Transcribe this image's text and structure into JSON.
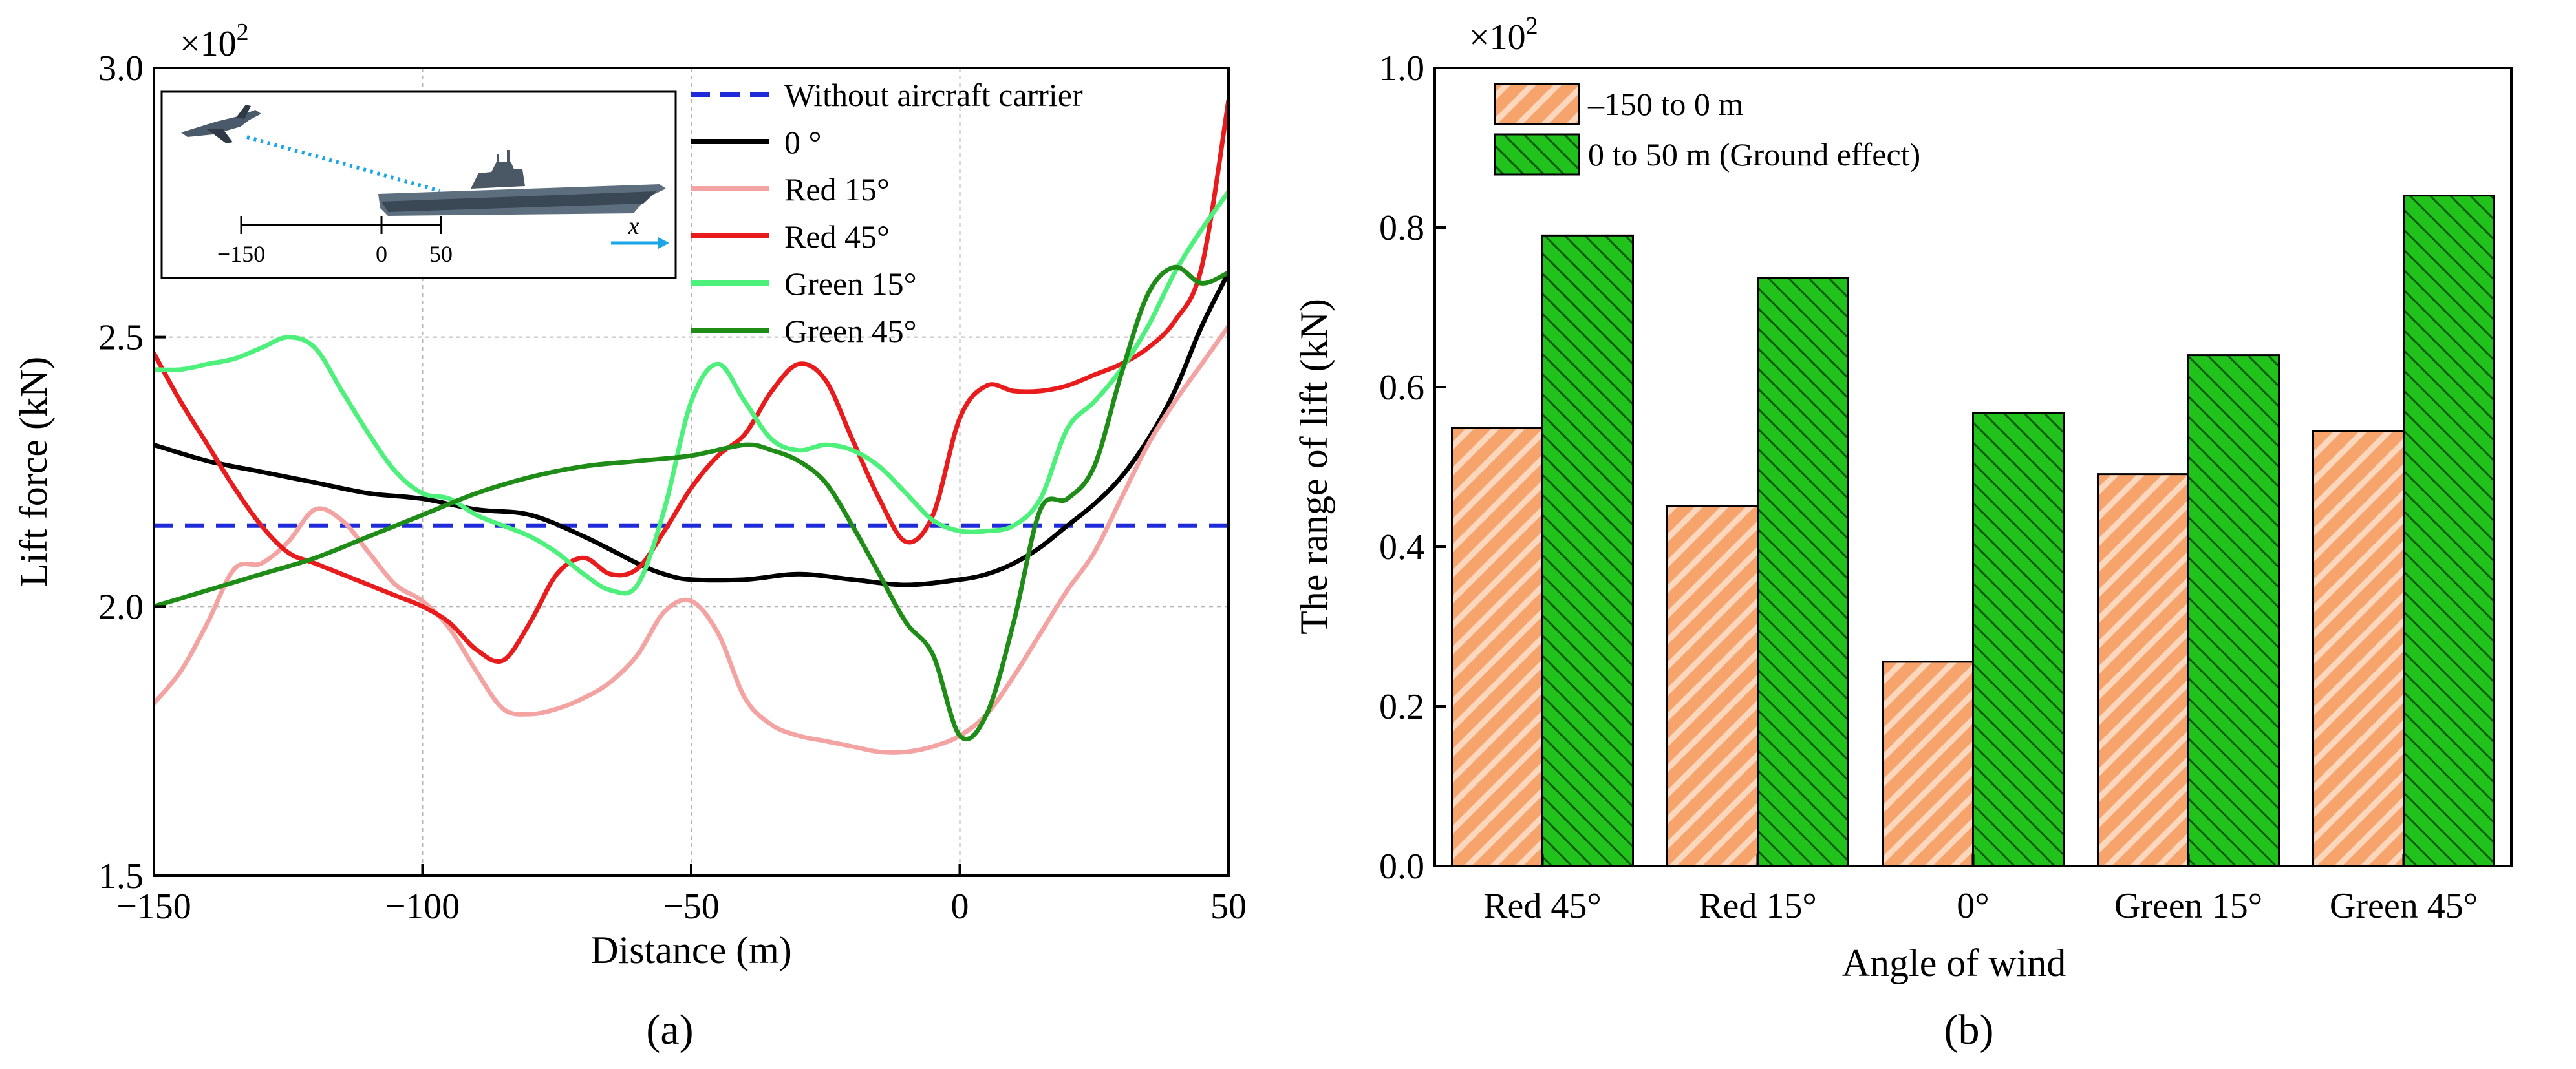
{
  "chart_data": [
    {
      "type": "line",
      "panel_label": "(a)",
      "xlabel": "Distance (m)",
      "ylabel": "Lift force (kN)",
      "xlim": [
        -150,
        50
      ],
      "ylim": [
        1.5,
        3.0
      ],
      "y_multiplier": "×10",
      "y_multiplier_exp": "2",
      "x_ticks": [
        -150,
        -100,
        -50,
        0,
        50
      ],
      "x_tick_labels": [
        "−150",
        "−100",
        "−50",
        "0",
        "50"
      ],
      "y_ticks": [
        1.5,
        2.0,
        2.5,
        3.0
      ],
      "y_tick_labels": [
        "1.5",
        "2.0",
        "2.5",
        "3.0"
      ],
      "grid": true,
      "inset": {
        "description": "aircraft approaching carrier deck",
        "tick_labels": [
          "−150",
          "0",
          "50"
        ],
        "axis_label": "x"
      },
      "series": [
        {
          "name": "Without aircraft carrier",
          "color": "#1f2bd8",
          "dash": true,
          "x": [
            -150,
            50
          ],
          "y": [
            2.15,
            2.15
          ]
        },
        {
          "name": "0 °",
          "color": "#000000",
          "x": [
            -150,
            -140,
            -130,
            -120,
            -110,
            -100,
            -90,
            -80,
            -70,
            -60,
            -55,
            -50,
            -40,
            -30,
            -20,
            -10,
            0,
            5,
            10,
            15,
            20,
            25,
            30,
            35,
            40,
            45,
            50
          ],
          "y": [
            2.3,
            2.27,
            2.25,
            2.23,
            2.21,
            2.2,
            2.18,
            2.17,
            2.13,
            2.08,
            2.06,
            2.05,
            2.05,
            2.06,
            2.05,
            2.04,
            2.05,
            2.06,
            2.08,
            2.11,
            2.15,
            2.19,
            2.24,
            2.31,
            2.4,
            2.52,
            2.62
          ]
        },
        {
          "name": "Red 15°",
          "color": "#f4a3a3",
          "x": [
            -150,
            -145,
            -140,
            -135,
            -130,
            -125,
            -120,
            -115,
            -110,
            -105,
            -100,
            -95,
            -90,
            -85,
            -80,
            -75,
            -70,
            -65,
            -60,
            -55,
            -50,
            -45,
            -40,
            -35,
            -30,
            -25,
            -20,
            -15,
            -10,
            -5,
            0,
            5,
            10,
            15,
            20,
            25,
            30,
            35,
            40,
            45,
            50
          ],
          "y": [
            1.82,
            1.88,
            1.97,
            2.07,
            2.08,
            2.12,
            2.18,
            2.16,
            2.1,
            2.04,
            2.01,
            1.96,
            1.88,
            1.81,
            1.8,
            1.81,
            1.83,
            1.86,
            1.91,
            1.99,
            2.01,
            1.95,
            1.83,
            1.78,
            1.76,
            1.75,
            1.74,
            1.73,
            1.73,
            1.74,
            1.76,
            1.8,
            1.87,
            1.95,
            2.03,
            2.1,
            2.2,
            2.3,
            2.38,
            2.45,
            2.52
          ]
        },
        {
          "name": "Red 45°",
          "color": "#e81c1c",
          "x": [
            -150,
            -145,
            -140,
            -135,
            -130,
            -125,
            -120,
            -115,
            -110,
            -105,
            -100,
            -95,
            -90,
            -85,
            -80,
            -75,
            -70,
            -65,
            -60,
            -55,
            -50,
            -45,
            -40,
            -35,
            -30,
            -25,
            -20,
            -15,
            -10,
            -5,
            0,
            5,
            10,
            15,
            20,
            25,
            30,
            35,
            40,
            45,
            50
          ],
          "y": [
            2.47,
            2.38,
            2.3,
            2.22,
            2.15,
            2.1,
            2.08,
            2.06,
            2.04,
            2.02,
            2.0,
            1.97,
            1.92,
            1.9,
            1.97,
            2.06,
            2.09,
            2.06,
            2.07,
            2.14,
            2.22,
            2.28,
            2.32,
            2.4,
            2.45,
            2.42,
            2.31,
            2.2,
            2.12,
            2.17,
            2.35,
            2.41,
            2.4,
            2.4,
            2.41,
            2.43,
            2.45,
            2.48,
            2.53,
            2.63,
            2.94
          ]
        },
        {
          "name": "Green 15°",
          "color": "#4cf07a",
          "x": [
            -150,
            -145,
            -140,
            -135,
            -130,
            -125,
            -120,
            -115,
            -110,
            -105,
            -100,
            -95,
            -90,
            -85,
            -80,
            -75,
            -70,
            -65,
            -60,
            -55,
            -50,
            -45,
            -40,
            -35,
            -30,
            -25,
            -20,
            -15,
            -10,
            -5,
            0,
            5,
            10,
            15,
            20,
            25,
            30,
            35,
            40,
            45,
            50
          ],
          "y": [
            2.44,
            2.44,
            2.45,
            2.46,
            2.48,
            2.5,
            2.48,
            2.4,
            2.32,
            2.25,
            2.21,
            2.2,
            2.17,
            2.15,
            2.13,
            2.1,
            2.06,
            2.03,
            2.04,
            2.18,
            2.38,
            2.45,
            2.38,
            2.31,
            2.29,
            2.3,
            2.29,
            2.26,
            2.21,
            2.16,
            2.14,
            2.14,
            2.15,
            2.2,
            2.33,
            2.38,
            2.44,
            2.52,
            2.62,
            2.7,
            2.77
          ]
        },
        {
          "name": "Green 45°",
          "color": "#1e8c16",
          "x": [
            -150,
            -140,
            -130,
            -120,
            -110,
            -100,
            -90,
            -80,
            -70,
            -60,
            -50,
            -40,
            -35,
            -30,
            -25,
            -20,
            -15,
            -10,
            -5,
            0,
            5,
            10,
            15,
            20,
            25,
            30,
            35,
            40,
            45,
            50
          ],
          "y": [
            2.0,
            2.03,
            2.06,
            2.09,
            2.13,
            2.17,
            2.21,
            2.24,
            2.26,
            2.27,
            2.28,
            2.3,
            2.29,
            2.27,
            2.23,
            2.15,
            2.06,
            1.97,
            1.91,
            1.76,
            1.8,
            1.97,
            2.18,
            2.2,
            2.26,
            2.43,
            2.58,
            2.63,
            2.6,
            2.62
          ]
        }
      ]
    },
    {
      "type": "bar",
      "panel_label": "(b)",
      "xlabel": "Angle of wind",
      "ylabel": "The range of lift (kN)",
      "ylim": [
        0.0,
        1.0
      ],
      "y_multiplier": "×10",
      "y_multiplier_exp": "2",
      "y_ticks": [
        0.0,
        0.2,
        0.4,
        0.6,
        0.8,
        1.0
      ],
      "y_tick_labels": [
        "0.0",
        "0.2",
        "0.4",
        "0.6",
        "0.8",
        "1.0"
      ],
      "categories": [
        "Red 45°",
        "Red 15°",
        "0°",
        "Green 15°",
        "Green 45°"
      ],
      "series": [
        {
          "name": "–150 to 0 m",
          "color": "#f6a36c",
          "values": [
            0.549,
            0.451,
            0.256,
            0.491,
            0.545
          ]
        },
        {
          "name": "0 to 50 m (Ground effect)",
          "color": "#22c21c",
          "values": [
            0.79,
            0.737,
            0.568,
            0.64,
            0.84
          ]
        }
      ]
    }
  ]
}
